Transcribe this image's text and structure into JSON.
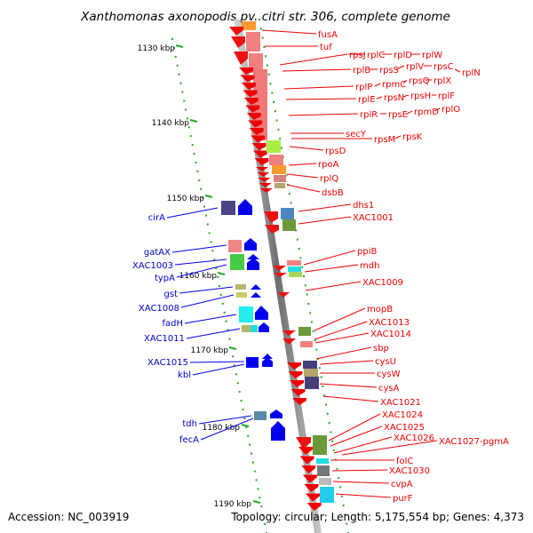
{
  "title": "Xanthomonas axonopodis pv. citri str. 306, complete genome",
  "footer": {
    "accession": "Accession: NC_003919",
    "info": "Topology: circular; Length: 5,175,554 bp; Genes: 4,373"
  },
  "kbp_labels": [
    "1130 kbp",
    "1140 kbp",
    "1150 kbp",
    "1160 kbp",
    "1170 kbp",
    "1180 kbp",
    "1190 kbp"
  ],
  "left_genes": [
    "cirA",
    "gatAX",
    "XAC1003",
    "typA",
    "gst",
    "XAC1008",
    "fadH",
    "XAC1011",
    "XAC1015",
    "kbl",
    "tdh",
    "fecA"
  ],
  "right_genes": [
    "fusA",
    "tuf",
    "rpsJ",
    "rplC",
    "rplD",
    "rplW",
    "rplB",
    "rpsS",
    "rplV",
    "rpsC",
    "rplN",
    "rplP",
    "rpmC",
    "rpsQ",
    "rplX",
    "rplE",
    "rpsN",
    "rpsH",
    "rplF",
    "rplR",
    "rpsE",
    "rpmD",
    "rplO",
    "secY",
    "rpsM",
    "rpsK",
    "rpsD",
    "rpoA",
    "rplQ",
    "dsbB",
    "dhs1",
    "XAC1001",
    "ppiB",
    "mdh",
    "XAC1009",
    "mopB",
    "XAC1013",
    "XAC1014",
    "sbp",
    "cysU",
    "cysW",
    "cysA",
    "XAC1021",
    "XAC1024",
    "XAC1025",
    "XAC1026",
    "XAC1027-pgmA",
    "folC",
    "XAC1030",
    "cvpA",
    "purF"
  ],
  "colors": {
    "forward_strand": "#0000ee",
    "reverse_strand": "#ee0000",
    "axis": "#8a8a8a",
    "tick": "#22aa22"
  }
}
